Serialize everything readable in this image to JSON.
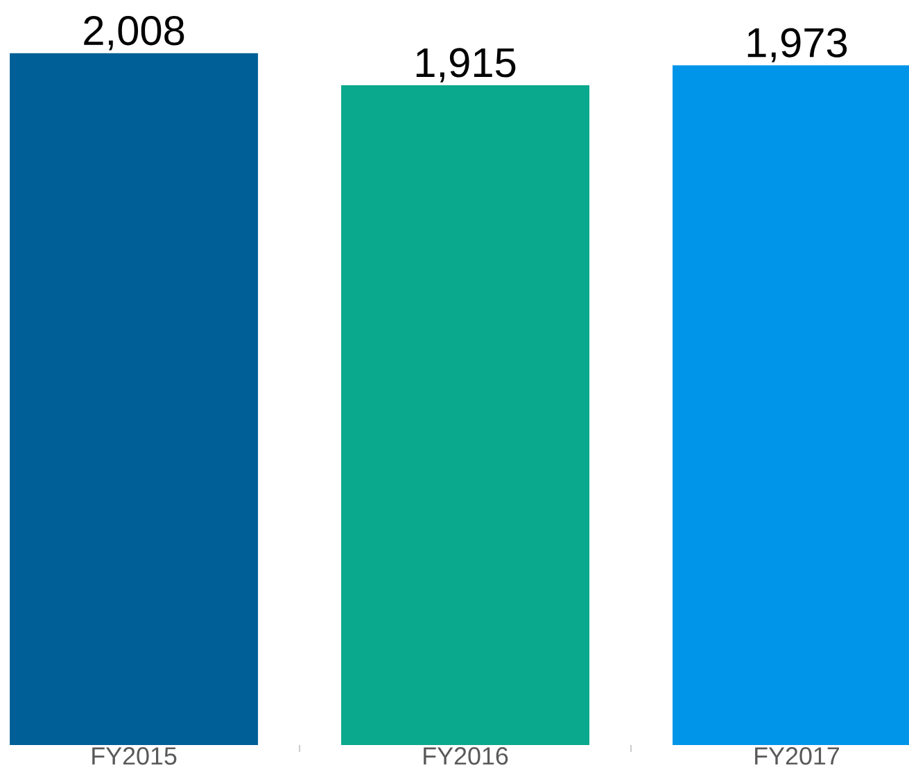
{
  "chart_data": {
    "type": "bar",
    "categories": [
      "FY2015",
      "FY2016",
      "FY2017"
    ],
    "values": [
      2008,
      1915,
      1973
    ],
    "value_labels": [
      "2,008",
      "1,915",
      "1,973"
    ],
    "colors": [
      "#005f96",
      "#0aa88c",
      "#0095e8"
    ]
  }
}
